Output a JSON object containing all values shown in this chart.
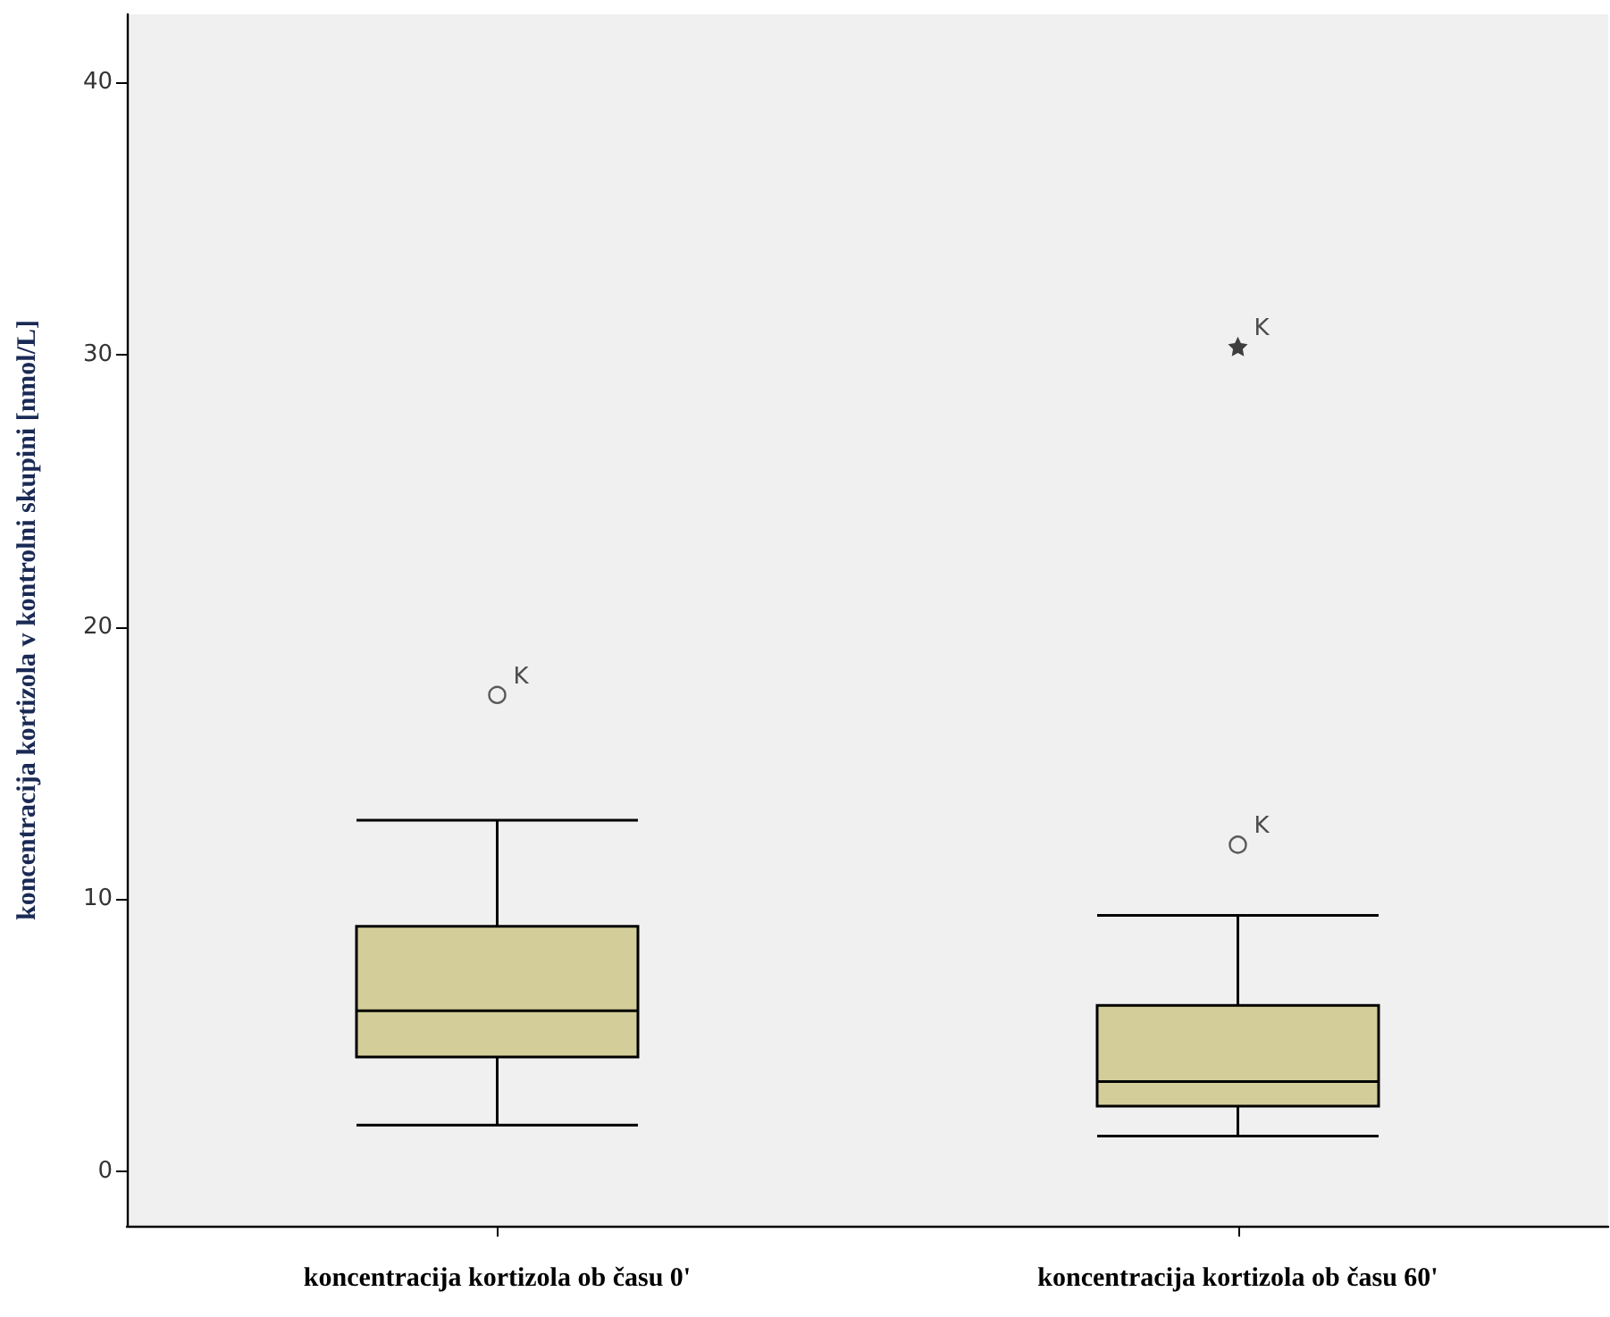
{
  "chart_data": {
    "type": "box",
    "ylabel": "koncentracija kortizola v kontrolni skupini [nmol/L]",
    "categories": [
      "koncentracija kortizola ob času 0'",
      "koncentracija kortizola ob času 60'"
    ],
    "boxes": [
      {
        "low": 1.7,
        "q1": 4.2,
        "median": 5.9,
        "q3": 9.0,
        "high": 12.9,
        "outliers": [
          17.5
        ]
      },
      {
        "low": 1.3,
        "q1": 2.4,
        "median": 3.3,
        "q3": 6.1,
        "high": 9.4,
        "outliers": [
          12.0,
          30.3
        ]
      }
    ],
    "color": "#d3ce99",
    "ylim": [
      -2,
      42.5
    ],
    "yticks": [
      0,
      10,
      20,
      30,
      40
    ],
    "grid": false,
    "annotations": [
      "K",
      "K",
      "K"
    ]
  }
}
